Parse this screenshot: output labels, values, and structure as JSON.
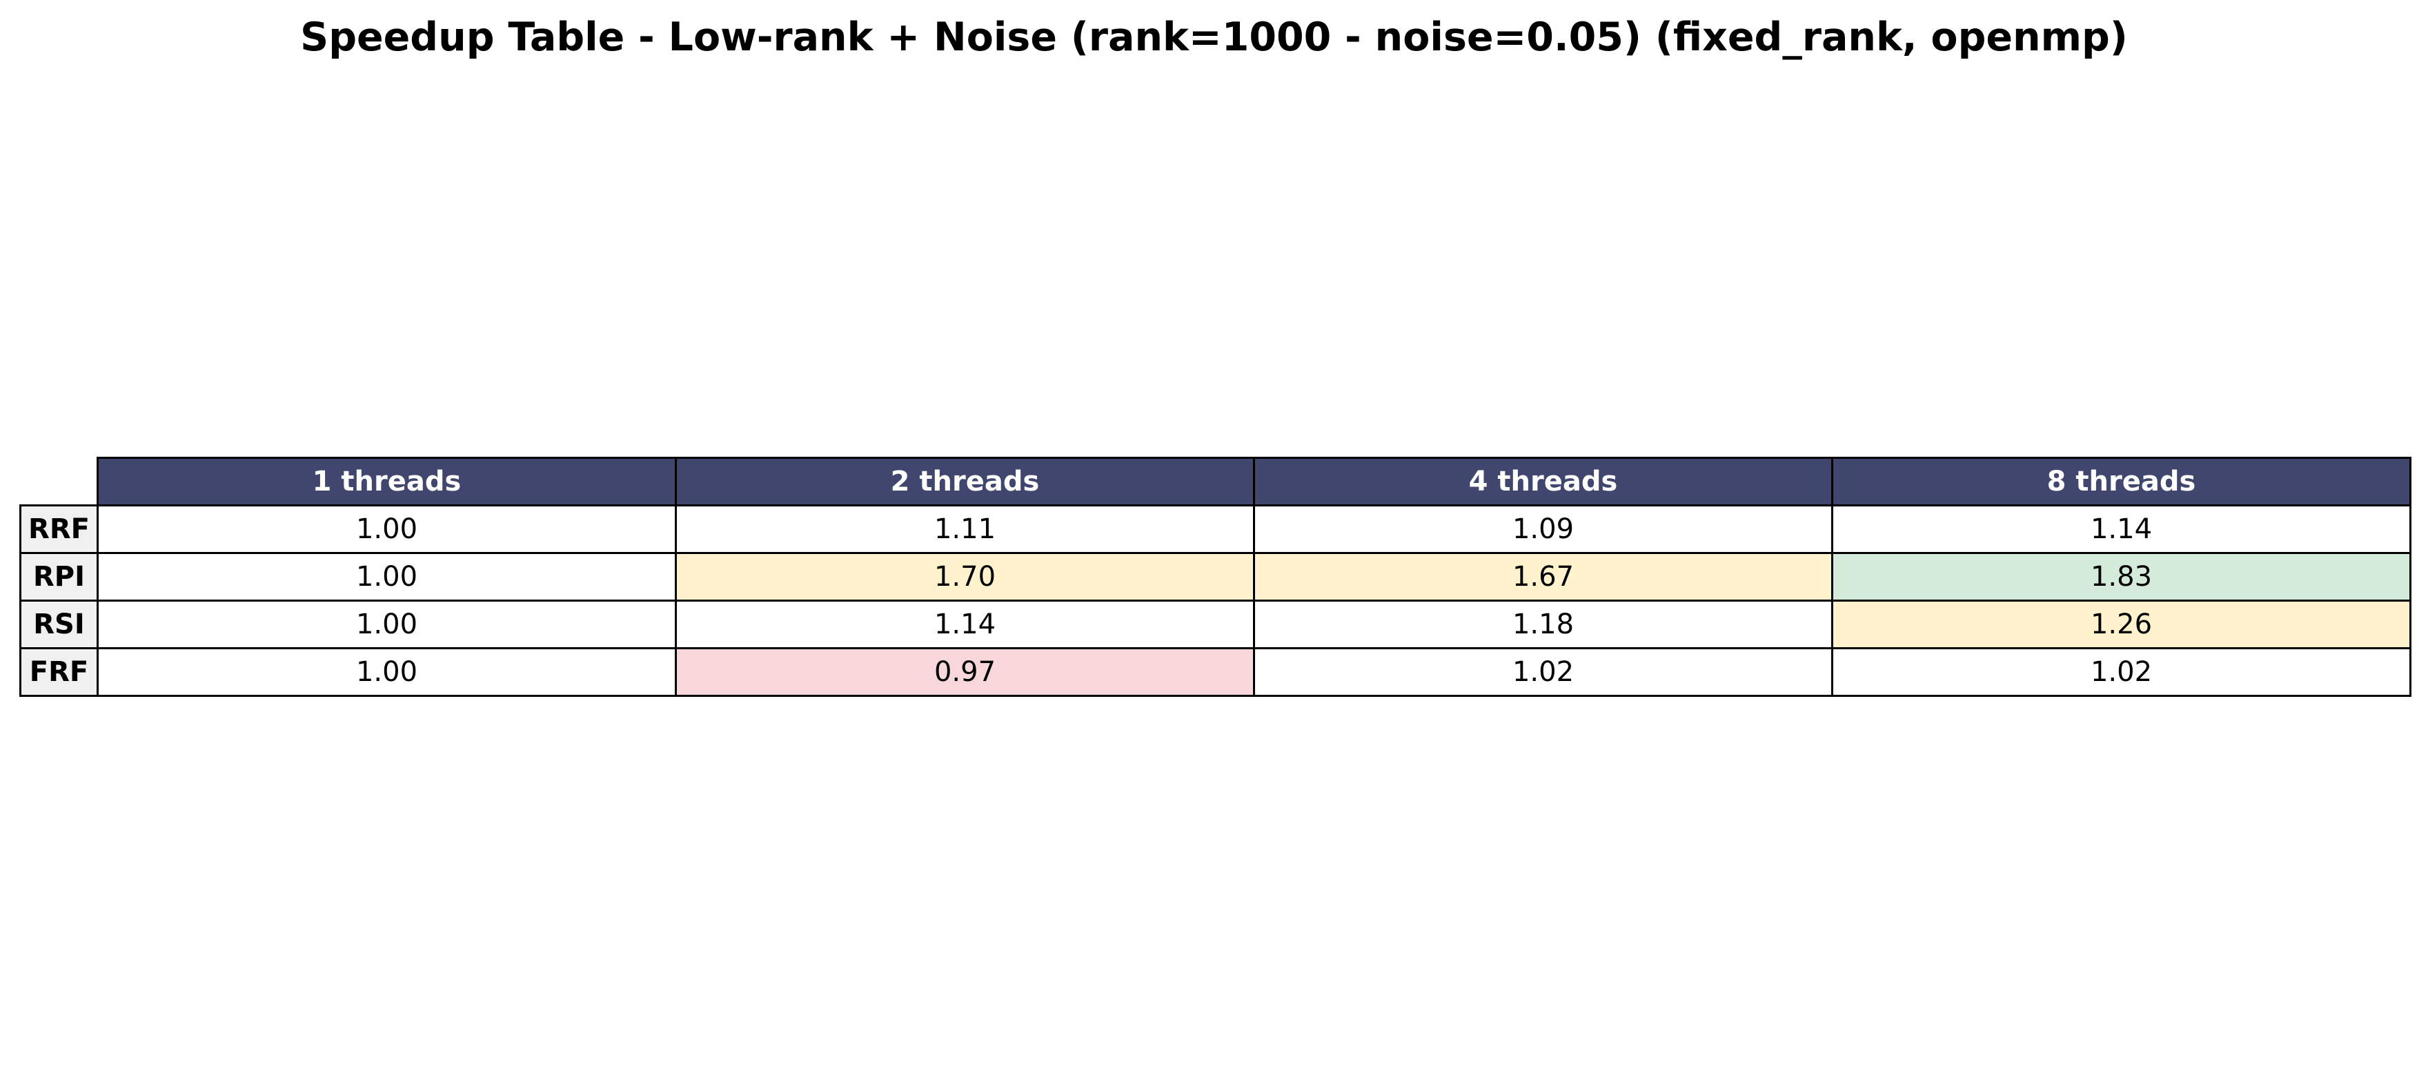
{
  "chart_data": {
    "type": "table",
    "title": "Speedup Table - Low-rank + Noise (rank=1000 - noise=0.05) (fixed_rank, openmp)",
    "columns": [
      "1 threads",
      "2 threads",
      "4 threads",
      "8 threads"
    ],
    "rows": [
      {
        "label": "RRF",
        "values": [
          "1.00",
          "1.11",
          "1.09",
          "1.14"
        ],
        "colors": [
          "#ffffff",
          "#ffffff",
          "#ffffff",
          "#ffffff"
        ]
      },
      {
        "label": "RPI",
        "values": [
          "1.00",
          "1.70",
          "1.67",
          "1.83"
        ],
        "colors": [
          "#ffffff",
          "#fff2cc",
          "#fff2cc",
          "#d5ebd9"
        ]
      },
      {
        "label": "RSI",
        "values": [
          "1.00",
          "1.14",
          "1.18",
          "1.26"
        ],
        "colors": [
          "#ffffff",
          "#ffffff",
          "#ffffff",
          "#fff2cc"
        ]
      },
      {
        "label": "FRF",
        "values": [
          "1.00",
          "0.97",
          "1.02",
          "1.02"
        ],
        "colors": [
          "#ffffff",
          "#f8d7da",
          "#ffffff",
          "#ffffff"
        ]
      }
    ],
    "header_color": "#40466e",
    "header_text_color": "#ffffff",
    "row_header_color": "#f0f0f0"
  }
}
